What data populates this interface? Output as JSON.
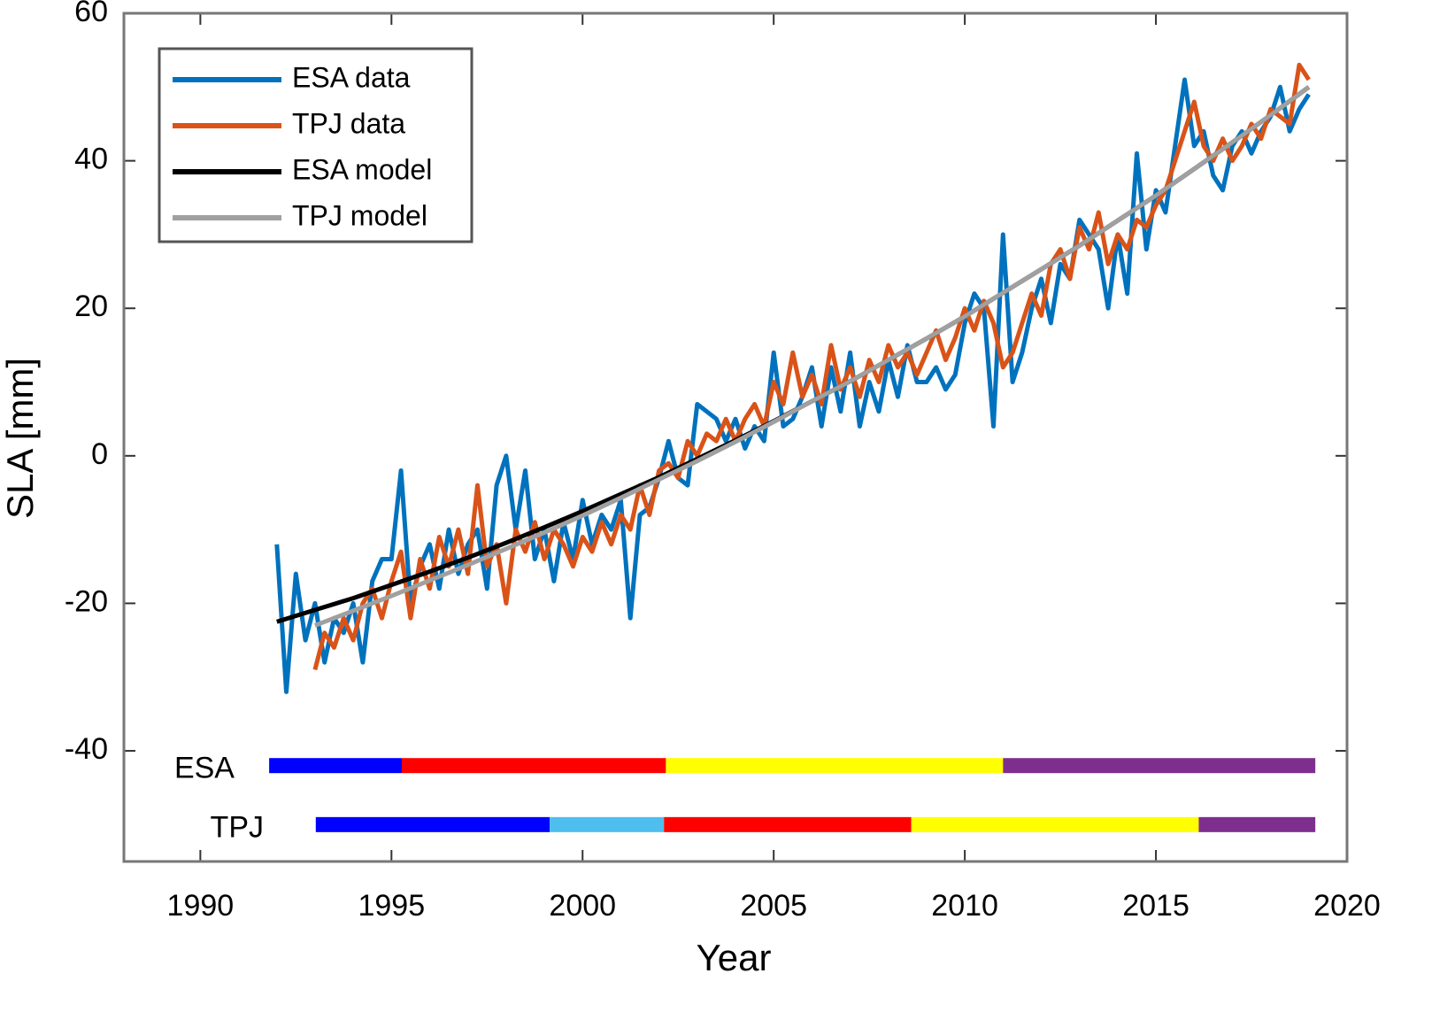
{
  "chart_data": {
    "type": "line",
    "x_label": "Year",
    "y_label": "SLA [mm]",
    "xlim": [
      1988,
      2020
    ],
    "ylim": [
      -55,
      60
    ],
    "xticks": [
      1990,
      1995,
      2000,
      2005,
      2010,
      2015,
      2020
    ],
    "yticks": [
      -40,
      -20,
      0,
      20,
      40,
      60
    ],
    "grid": false,
    "legend": "upper left",
    "x": [
      1992,
      1992.25,
      1992.5,
      1992.75,
      1993,
      1993.25,
      1993.5,
      1993.75,
      1994,
      1994.25,
      1994.5,
      1994.75,
      1995,
      1995.25,
      1995.5,
      1995.75,
      1996,
      1996.25,
      1996.5,
      1996.75,
      1997,
      1997.25,
      1997.5,
      1997.75,
      1998,
      1998.25,
      1998.5,
      1998.75,
      1999,
      1999.25,
      1999.5,
      1999.75,
      2000,
      2000.25,
      2000.5,
      2000.75,
      2001,
      2001.25,
      2001.5,
      2001.75,
      2002,
      2002.25,
      2002.5,
      2002.75,
      2003,
      2003.25,
      2003.5,
      2003.75,
      2004,
      2004.25,
      2004.5,
      2004.75,
      2005,
      2005.25,
      2005.5,
      2005.75,
      2006,
      2006.25,
      2006.5,
      2006.75,
      2007,
      2007.25,
      2007.5,
      2007.75,
      2008,
      2008.25,
      2008.5,
      2008.75,
      2009,
      2009.25,
      2009.5,
      2009.75,
      2010,
      2010.25,
      2010.5,
      2010.75,
      2011,
      2011.25,
      2011.5,
      2011.75,
      2012,
      2012.25,
      2012.5,
      2012.75,
      2013,
      2013.25,
      2013.5,
      2013.75,
      2014,
      2014.25,
      2014.5,
      2014.75,
      2015,
      2015.25,
      2015.5,
      2015.75,
      2016,
      2016.25,
      2016.5,
      2016.75,
      2017,
      2017.25,
      2017.5,
      2017.75,
      2018,
      2018.25,
      2018.5,
      2018.75,
      2019
    ],
    "series": [
      {
        "name": "ESA data",
        "color": "#0072bd",
        "values": [
          -12,
          -32,
          -16,
          -25,
          -20,
          -28,
          -22,
          -24,
          -20,
          -28,
          -17,
          -14,
          -14,
          -2,
          -20,
          -15,
          -12,
          -18,
          -10,
          -16,
          -12,
          -10,
          -18,
          -4,
          0,
          -10,
          -2,
          -14,
          -10,
          -17,
          -9,
          -14,
          -6,
          -12,
          -8,
          -10,
          -6,
          -22,
          -8,
          -7,
          -3,
          2,
          -3,
          -4,
          7,
          6,
          5,
          2,
          5,
          1,
          4,
          2,
          14,
          4,
          5,
          8,
          12,
          4,
          12,
          6,
          14,
          4,
          10,
          6,
          13,
          8,
          15,
          10,
          10,
          12,
          9,
          11,
          18,
          22,
          20,
          4,
          30,
          10,
          14,
          20,
          24,
          18,
          26,
          24,
          32,
          30,
          28,
          20,
          30,
          22,
          41,
          28,
          36,
          33,
          42,
          51,
          42,
          44,
          38,
          36,
          42,
          44,
          41,
          44,
          46,
          50,
          44,
          47,
          49
        ]
      },
      {
        "name": "TPJ data",
        "color": "#d95319",
        "values": [
          null,
          null,
          null,
          null,
          -29,
          -24,
          -26,
          -22,
          -25,
          -20,
          -18,
          -22,
          -17,
          -13,
          -22,
          -14,
          -18,
          -11,
          -15,
          -10,
          -16,
          -4,
          -15,
          -12,
          -20,
          -10,
          -13,
          -9,
          -14,
          -10,
          -12,
          -15,
          -11,
          -13,
          -9,
          -12,
          -8,
          -10,
          -4,
          -8,
          -2,
          -1,
          -3,
          2,
          0,
          3,
          2,
          5,
          2,
          5,
          7,
          4,
          10,
          7,
          14,
          8,
          11,
          7,
          15,
          9,
          12,
          8,
          13,
          10,
          15,
          12,
          14,
          11,
          14,
          17,
          13,
          16,
          20,
          17,
          21,
          18,
          12,
          14,
          18,
          22,
          19,
          26,
          28,
          24,
          31,
          28,
          33,
          26,
          30,
          28,
          32,
          31,
          34,
          36,
          40,
          44,
          48,
          42,
          40,
          43,
          40,
          42,
          45,
          43,
          47,
          46,
          45,
          53,
          51
        ]
      },
      {
        "name": "ESA model",
        "color": "#000000",
        "x": [
          1992,
          1993,
          1994,
          1995,
          1996,
          1997,
          1998,
          1999,
          2000,
          2001,
          2002,
          2003,
          2004,
          2005,
          2006,
          2007,
          2008,
          2009,
          2010,
          2011,
          2012,
          2013,
          2014,
          2015,
          2016,
          2017,
          2018,
          2019
        ],
        "values": [
          -22.5,
          -20.9,
          -19.3,
          -17.5,
          -15.7,
          -13.8,
          -11.8,
          -9.7,
          -7.5,
          -5.2,
          -2.9,
          -0.4,
          2.1,
          4.7,
          7.4,
          10.1,
          13.0,
          15.9,
          18.9,
          22.1,
          25.3,
          28.5,
          31.9,
          35.3,
          38.9,
          42.5,
          46.2,
          50.0
        ]
      },
      {
        "name": "TPJ model",
        "color": "#a0a0a0",
        "x": [
          1993,
          1994,
          1995,
          1996,
          1997,
          1998,
          1999,
          2000,
          2001,
          2002,
          2003,
          2004,
          2005,
          2006,
          2007,
          2008,
          2009,
          2010,
          2011,
          2012,
          2013,
          2014,
          2015,
          2016,
          2017,
          2018,
          2019
        ],
        "values": [
          -23.0,
          -21.0,
          -19.0,
          -16.9,
          -14.8,
          -12.6,
          -10.4,
          -8.1,
          -5.7,
          -3.2,
          -0.7,
          1.9,
          4.6,
          7.4,
          10.1,
          13.0,
          15.9,
          18.9,
          22.1,
          25.3,
          28.5,
          31.9,
          35.3,
          38.9,
          42.5,
          46.2,
          50.0
        ]
      }
    ],
    "timelines": [
      {
        "label": "ESA",
        "y": -42,
        "segments": [
          {
            "start": 1991.8,
            "end": 1995.27,
            "color": "#0000ff"
          },
          {
            "start": 1995.27,
            "end": 2002.18,
            "color": "#ff0000"
          },
          {
            "start": 2002.18,
            "end": 2011.0,
            "color": "#ffff00"
          },
          {
            "start": 2011.0,
            "end": 2019.17,
            "color": "#7e2f8e"
          }
        ]
      },
      {
        "label": "TPJ",
        "y": -50,
        "segments": [
          {
            "start": 1993.02,
            "end": 1999.14,
            "color": "#0000ff"
          },
          {
            "start": 1999.14,
            "end": 2002.13,
            "color": "#4dbeee"
          },
          {
            "start": 2002.13,
            "end": 2008.6,
            "color": "#ff0000"
          },
          {
            "start": 2008.6,
            "end": 2016.12,
            "color": "#ffff00"
          },
          {
            "start": 2016.12,
            "end": 2019.17,
            "color": "#7e2f8e"
          }
        ]
      }
    ]
  }
}
